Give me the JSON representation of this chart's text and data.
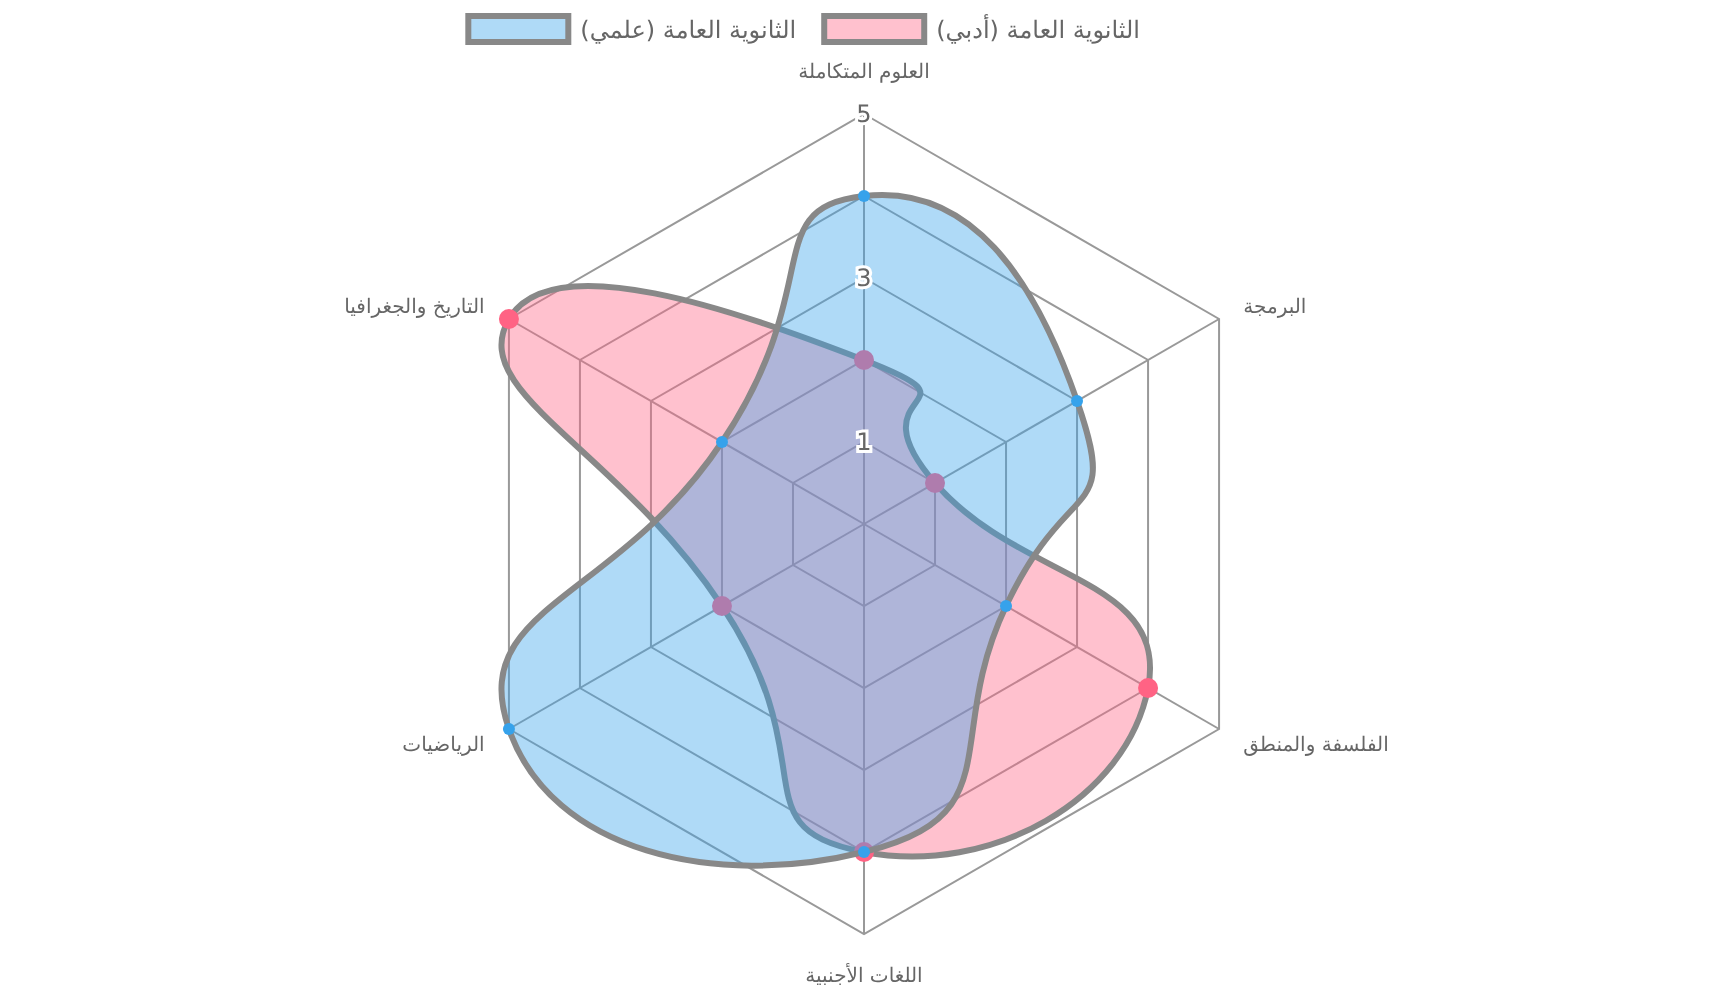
{
  "chart_data": {
    "type": "radar",
    "categories": [
      "العلوم المتكاملة",
      "البرمجة",
      "الفلسفة والمنطق",
      "اللغات الأجنبية",
      "الرياضيات",
      "التاريخ والجغرافيا"
    ],
    "series": [
      {
        "name": "الثانوية العامة (أدبي)",
        "color": "#ff6384",
        "values": [
          2,
          1,
          4,
          4,
          2,
          5
        ]
      },
      {
        "name": "الثانوية العامة (علمي)",
        "color": "#36a2eb",
        "values": [
          4,
          3,
          2,
          4,
          5,
          2
        ]
      }
    ],
    "ylim": [
      0,
      5
    ],
    "yticks": [
      1,
      3,
      5
    ],
    "grid": true,
    "legend": "top",
    "marker": "circle"
  }
}
